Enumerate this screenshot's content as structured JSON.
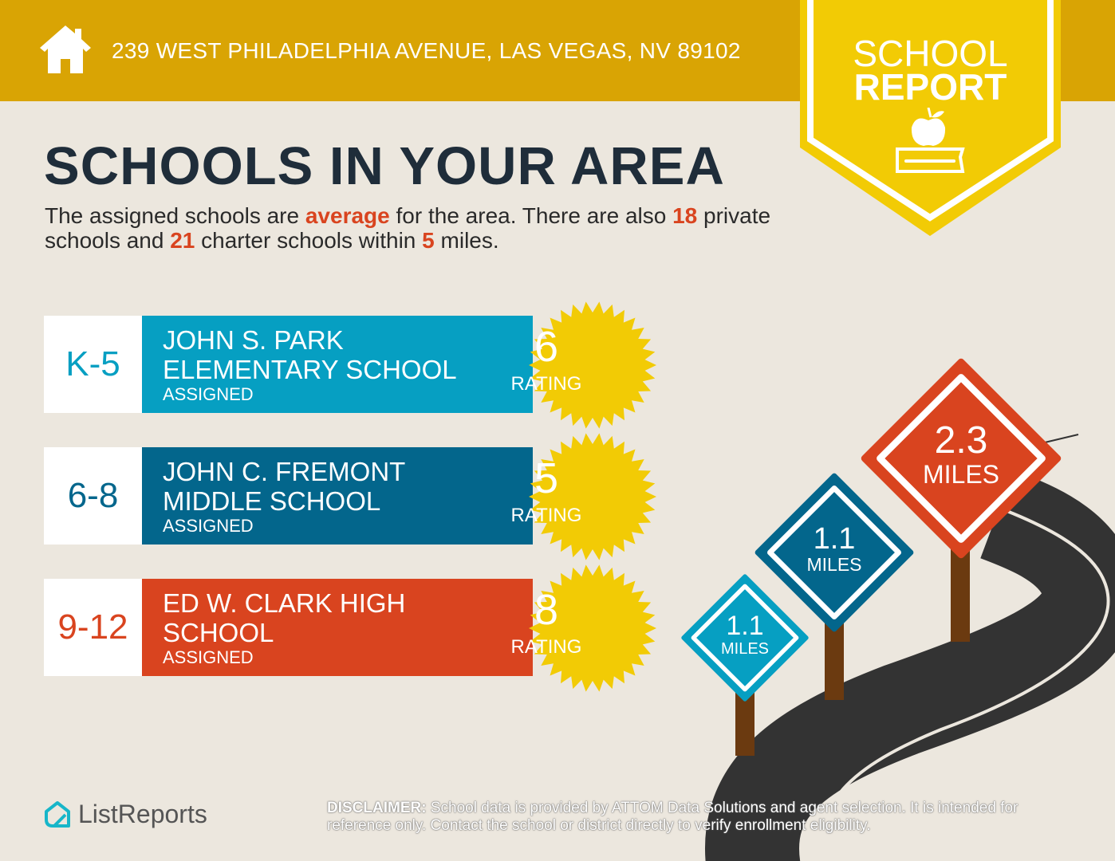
{
  "header": {
    "address": "239 WEST PHILADELPHIA AVENUE, LAS VEGAS, NV 89102",
    "icon": "house-icon"
  },
  "banner": {
    "line1": "SCHOOL",
    "line2": "REPORT",
    "icon": "apple-on-book-icon"
  },
  "title": "SCHOOLS IN YOUR AREA",
  "intro": {
    "p1": "The assigned schools are ",
    "quality": "average",
    "p2": " for the area. There are also ",
    "private_count": "18",
    "p3": " private schools and ",
    "charter_count": "21",
    "p4": " charter schools within ",
    "miles": "5",
    "p5": " miles."
  },
  "schools": [
    {
      "grades": "K-5",
      "name": "JOHN S. PARK ELEMENTARY SCHOOL",
      "status": "ASSIGNED",
      "rating": "6",
      "rating_label": "RATING",
      "distance": "1.1",
      "distance_unit": "MILES",
      "color": "#069FC2"
    },
    {
      "grades": "6-8",
      "name": "JOHN C. FREMONT MIDDLE SCHOOL",
      "status": "ASSIGNED",
      "rating": "5",
      "rating_label": "RATING",
      "distance": "1.1",
      "distance_unit": "MILES",
      "color": "#03668C"
    },
    {
      "grades": "9-12",
      "name": "ED W. CLARK HIGH SCHOOL",
      "status": "ASSIGNED",
      "rating": "8",
      "rating_label": "RATING",
      "distance": "2.3",
      "distance_unit": "MILES",
      "color": "#D9441F"
    }
  ],
  "colors": {
    "header": "#D9A404",
    "banner": "#F2CB05",
    "background": "#ECE7DE",
    "title": "#1F2D3A",
    "road": "#333333",
    "post": "#6B3A10"
  },
  "footer": {
    "logo": "ListReports",
    "disclaimer_label": "DISCLAIMER:",
    "disclaimer": " School data is provided by ATTOM Data Solutions and agent selection. It is intended for reference only. Contact the school or district directly to verify enrollment eligibility."
  }
}
